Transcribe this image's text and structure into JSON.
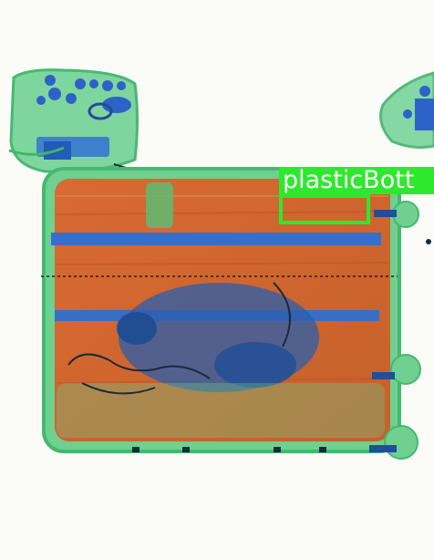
{
  "detection": {
    "label": "plasticBott",
    "box_color": "#2ee82e",
    "label_text_color": "#ffffff"
  },
  "colors": {
    "background": "#fbfbf8",
    "organic": "#d2692f",
    "inorganic": "#55c77a",
    "metal": "#2a6fc9"
  }
}
